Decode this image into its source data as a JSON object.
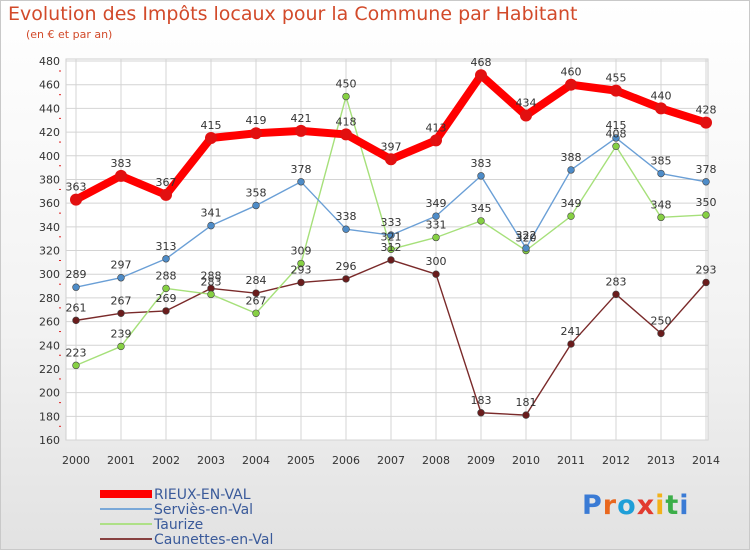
{
  "title": "Evolution des Impôts locaux pour la Commune par Habitant",
  "subtitle": "(en € et par an)",
  "logo_text": "Proxiti",
  "chart_data": {
    "type": "line",
    "title": "Evolution des Impôts locaux pour la Commune par Habitant",
    "subtitle": "(en € et par an)",
    "xlabel": "",
    "ylabel": "",
    "x": [
      2000,
      2001,
      2002,
      2003,
      2004,
      2005,
      2006,
      2007,
      2008,
      2009,
      2010,
      2011,
      2012,
      2013,
      2014
    ],
    "ylim": [
      160,
      480
    ],
    "yticks": [
      160,
      180,
      200,
      220,
      240,
      260,
      280,
      300,
      320,
      340,
      360,
      380,
      400,
      420,
      440,
      460,
      480
    ],
    "grid": true,
    "legend_position": "bottom-left",
    "series": [
      {
        "name": "RIEUX-EN-VAL",
        "color": "#ff0000",
        "marker": "#e21010",
        "values": [
          363,
          383,
          367,
          415,
          419,
          421,
          418,
          397,
          413,
          468,
          434,
          460,
          455,
          440,
          428
        ]
      },
      {
        "name": "Serviès-en-Val",
        "color": "#6a9fd6",
        "marker": "#4e8cc8",
        "values": [
          289,
          297,
          313,
          341,
          358,
          378,
          338,
          333,
          349,
          383,
          322,
          388,
          415,
          385,
          378
        ]
      },
      {
        "name": "Taurize",
        "color": "#a6e07a",
        "marker": "#86d043",
        "values": [
          223,
          239,
          288,
          283,
          267,
          309,
          450,
          321,
          331,
          345,
          320,
          349,
          408,
          348,
          350
        ]
      },
      {
        "name": "Caunettes-en-Val",
        "color": "#7a2a2a",
        "marker": "#6a1c1c",
        "values": [
          261,
          267,
          269,
          288,
          284,
          293,
          296,
          312,
          300,
          183,
          181,
          241,
          283,
          250,
          293
        ]
      }
    ]
  }
}
